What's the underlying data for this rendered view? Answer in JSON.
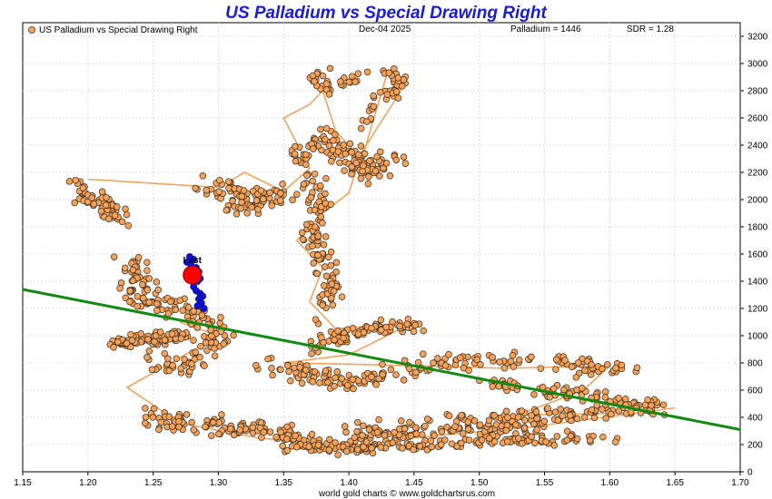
{
  "chart_data": {
    "type": "scatter",
    "title": "US Palladium vs Special Drawing Right",
    "legend": "US Palladium vs Special Drawing Right",
    "legend_position": "top-left",
    "date": "Dec-04  2025",
    "palladium_readout": "Palladium = 1446",
    "sdr_readout": "SDR = 1.28",
    "footer": "world gold charts © www.goldchartsrus.com",
    "last_label": "Last",
    "xlim": [
      1.15,
      1.7
    ],
    "ylim": [
      0,
      3300
    ],
    "x_ticks": [
      "1.15",
      "1.20",
      "1.25",
      "1.30",
      "1.35",
      "1.40",
      "1.45",
      "1.50",
      "1.55",
      "1.60",
      "1.65",
      "1.70"
    ],
    "y_ticks": [
      "0",
      "200",
      "400",
      "600",
      "800",
      "1000",
      "1200",
      "1400",
      "1600",
      "1800",
      "2000",
      "2200",
      "2400",
      "2600",
      "2800",
      "3000",
      "3200"
    ],
    "grid": true,
    "colors": {
      "points": "#f5a25a",
      "point_edge": "#3a2a1a",
      "path": "#f5a25a",
      "trend": "#108a10",
      "recent": "#1010e0",
      "last": "#ff0000",
      "title": "#1a1adc"
    },
    "trend_line": {
      "x": [
        1.15,
        1.7
      ],
      "y": [
        1340,
        310
      ]
    },
    "last_point": {
      "x": 1.28,
      "y": 1446
    },
    "recent_points": [
      [
        1.278,
        1580
      ],
      [
        1.281,
        1560
      ],
      [
        1.276,
        1540
      ],
      [
        1.279,
        1520
      ],
      [
        1.283,
        1500
      ],
      [
        1.285,
        1470
      ],
      [
        1.286,
        1420
      ],
      [
        1.284,
        1400
      ],
      [
        1.281,
        1360
      ],
      [
        1.283,
        1330
      ],
      [
        1.286,
        1310
      ],
      [
        1.288,
        1290
      ],
      [
        1.285,
        1270
      ],
      [
        1.287,
        1240
      ],
      [
        1.284,
        1220
      ],
      [
        1.289,
        1200
      ]
    ],
    "clusters": [
      {
        "p": [
          [
            1.25,
            440
          ],
          [
            1.27,
            330
          ],
          [
            1.31,
            330
          ],
          [
            1.34,
            300
          ],
          [
            1.37,
            190
          ],
          [
            1.42,
            200
          ],
          [
            1.45,
            320
          ],
          [
            1.5,
            300
          ],
          [
            1.55,
            350
          ]
        ],
        "n": 240,
        "s": [
          0.014,
          55
        ]
      },
      {
        "p": [
          [
            1.35,
            190
          ],
          [
            1.4,
            180
          ],
          [
            1.45,
            190
          ],
          [
            1.5,
            220
          ],
          [
            1.55,
            240
          ],
          [
            1.6,
            260
          ]
        ],
        "n": 130,
        "s": [
          0.012,
          35
        ]
      },
      {
        "p": [
          [
            1.4,
            300
          ],
          [
            1.45,
            330
          ],
          [
            1.5,
            380
          ],
          [
            1.55,
            420
          ],
          [
            1.6,
            450
          ],
          [
            1.64,
            470
          ]
        ],
        "n": 130,
        "s": [
          0.012,
          55
        ]
      },
      {
        "p": [
          [
            1.33,
            800
          ],
          [
            1.37,
            720
          ],
          [
            1.4,
            640
          ],
          [
            1.44,
            760
          ],
          [
            1.48,
            800
          ],
          [
            1.53,
            820
          ],
          [
            1.58,
            780
          ],
          [
            1.61,
            780
          ]
        ],
        "n": 180,
        "s": [
          0.014,
          55
        ]
      },
      {
        "p": [
          [
            1.51,
            650
          ],
          [
            1.55,
            600
          ],
          [
            1.59,
            550
          ],
          [
            1.63,
            470
          ]
        ],
        "n": 70,
        "s": [
          0.014,
          40
        ]
      },
      {
        "p": [
          [
            1.25,
            800
          ],
          [
            1.28,
            780
          ],
          [
            1.3,
            960
          ],
          [
            1.29,
            1100
          ],
          [
            1.27,
            1200
          ],
          [
            1.24,
            1250
          ],
          [
            1.24,
            1400
          ],
          [
            1.23,
            1550
          ]
        ],
        "n": 170,
        "s": [
          0.012,
          65
        ]
      },
      {
        "p": [
          [
            1.22,
            940
          ],
          [
            1.24,
            960
          ],
          [
            1.26,
            1000
          ],
          [
            1.28,
            1010
          ]
        ],
        "n": 80,
        "s": [
          0.012,
          35
        ]
      },
      {
        "p": [
          [
            1.37,
            900
          ],
          [
            1.39,
            1000
          ],
          [
            1.42,
            1050
          ],
          [
            1.45,
            1080
          ]
        ],
        "n": 80,
        "s": [
          0.01,
          45
        ]
      },
      {
        "p": [
          [
            1.38,
            1150
          ],
          [
            1.39,
            1350
          ],
          [
            1.38,
            1550
          ],
          [
            1.37,
            1750
          ],
          [
            1.38,
            1950
          ],
          [
            1.37,
            2150
          ]
        ],
        "n": 110,
        "s": [
          0.008,
          65
        ]
      },
      {
        "p": [
          [
            1.36,
            2300
          ],
          [
            1.38,
            2450
          ],
          [
            1.4,
            2300
          ],
          [
            1.42,
            2200
          ],
          [
            1.44,
            2350
          ]
        ],
        "n": 120,
        "s": [
          0.012,
          80
        ]
      },
      {
        "p": [
          [
            1.41,
            2500
          ],
          [
            1.42,
            2700
          ],
          [
            1.44,
            2850
          ],
          [
            1.43,
            2950
          ],
          [
            1.37,
            2800
          ],
          [
            1.38,
            2950
          ]
        ],
        "n": 70,
        "s": [
          0.007,
          50
        ]
      },
      {
        "p": [
          [
            1.31,
            2100
          ],
          [
            1.33,
            2000
          ],
          [
            1.35,
            2050
          ],
          [
            1.32,
            1900
          ],
          [
            1.29,
            2150
          ]
        ],
        "n": 90,
        "s": [
          0.012,
          60
        ]
      },
      {
        "p": [
          [
            1.19,
            2150
          ],
          [
            1.2,
            2050
          ],
          [
            1.21,
            1950
          ],
          [
            1.22,
            1900
          ],
          [
            1.23,
            1850
          ]
        ],
        "n": 65,
        "s": [
          0.009,
          60
        ]
      }
    ],
    "path_points": [
      [
        1.2,
        2150
      ],
      [
        1.3,
        2090
      ],
      [
        1.32,
        2200
      ],
      [
        1.35,
        2060
      ],
      [
        1.37,
        2230
      ],
      [
        1.35,
        2600
      ],
      [
        1.37,
        2700
      ],
      [
        1.38,
        2800
      ],
      [
        1.39,
        2500
      ],
      [
        1.41,
        2300
      ],
      [
        1.43,
        2950
      ],
      [
        1.44,
        2800
      ],
      [
        1.41,
        2350
      ],
      [
        1.4,
        2050
      ],
      [
        1.38,
        1900
      ],
      [
        1.36,
        1700
      ],
      [
        1.38,
        1500
      ],
      [
        1.37,
        1250
      ],
      [
        1.39,
        1050
      ],
      [
        1.45,
        1100
      ],
      [
        1.4,
        860
      ],
      [
        1.35,
        800
      ],
      [
        1.45,
        780
      ],
      [
        1.52,
        760
      ],
      [
        1.6,
        780
      ],
      [
        1.58,
        600
      ],
      [
        1.53,
        420
      ],
      [
        1.62,
        430
      ],
      [
        1.65,
        470
      ],
      [
        1.54,
        330
      ],
      [
        1.45,
        250
      ],
      [
        1.4,
        180
      ],
      [
        1.33,
        250
      ],
      [
        1.27,
        360
      ],
      [
        1.23,
        620
      ],
      [
        1.26,
        780
      ],
      [
        1.3,
        1000
      ],
      [
        1.27,
        1100
      ]
    ]
  }
}
